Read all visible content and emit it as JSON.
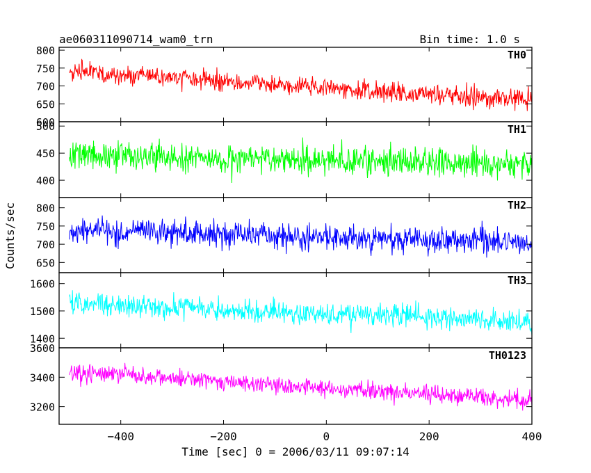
{
  "header": {
    "title": "ae060311090714_wam0_trn",
    "bin_time": "Bin time: 1.0 s"
  },
  "chart_data": {
    "type": "line",
    "xlabel": "Time [sec] 0 = 2006/03/11 09:07:14",
    "ylabel": "Counts/sec",
    "xlim": [
      -520,
      400
    ],
    "x_range": [
      -500,
      400
    ],
    "x_step": 1,
    "xticks": [
      -400,
      -200,
      0,
      200,
      400
    ],
    "xtick_labels": [
      "−400",
      "−200",
      "0",
      "200",
      "400"
    ],
    "panels": [
      {
        "name": "TH0",
        "color": "#ff0000",
        "ylim": [
          600,
          808
        ],
        "yticks": [
          600,
          650,
          700,
          750,
          800
        ],
        "ytick_labels": [
          "600",
          "650",
          "700",
          "750",
          "800"
        ],
        "trend": {
          "start": 740,
          "end": 660
        },
        "noise": 27
      },
      {
        "name": "TH1",
        "color": "#00ff00",
        "ylim": [
          368,
          508
        ],
        "yticks": [
          400,
          450,
          500
        ],
        "ytick_labels": [
          "400",
          "450",
          "500"
        ],
        "trend": {
          "start": 445,
          "end": 430
        },
        "noise": 27
      },
      {
        "name": "TH2",
        "color": "#0000ff",
        "ylim": [
          622,
          828
        ],
        "yticks": [
          650,
          700,
          750,
          800
        ],
        "ytick_labels": [
          "650",
          "700",
          "750",
          "800"
        ],
        "trend": {
          "start": 740,
          "end": 705
        },
        "noise": 35
      },
      {
        "name": "TH3",
        "color": "#00ffff",
        "ylim": [
          1365,
          1640
        ],
        "yticks": [
          1400,
          1500,
          1600
        ],
        "ytick_labels": [
          "1400",
          "1500",
          "1600"
        ],
        "trend": {
          "start": 1530,
          "end": 1460
        },
        "noise": 40
      },
      {
        "name": "TH0123",
        "color": "#ff00ff",
        "ylim": [
          3080,
          3600
        ],
        "yticks": [
          3200,
          3400,
          3600
        ],
        "ytick_labels": [
          "3200",
          "3400",
          "3600"
        ],
        "trend": {
          "start": 3440,
          "end": 3240
        },
        "noise": 60
      }
    ]
  }
}
